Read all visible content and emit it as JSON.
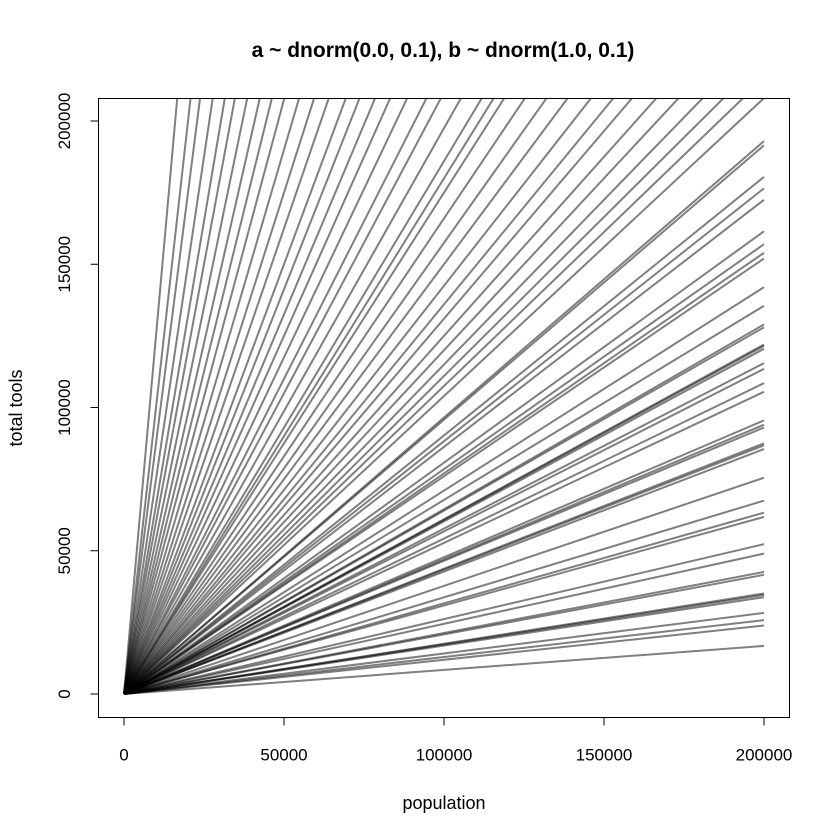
{
  "chart_data": {
    "type": "line",
    "title": "a ~ dnorm(0.0, 0.1), b ~ dnorm(1.0, 0.1)",
    "xlabel": "population",
    "ylabel": "total tools",
    "xlim": [
      0,
      200000
    ],
    "ylim": [
      0,
      200000
    ],
    "x_ticks": [
      0,
      50000,
      100000,
      150000,
      200000
    ],
    "y_ticks": [
      0,
      50000,
      100000,
      150000,
      200000
    ],
    "x_tick_labels": [
      "0",
      "50000",
      "100000",
      "150000",
      "200000"
    ],
    "y_tick_labels": [
      "0",
      "50000",
      "100000",
      "150000",
      "200000"
    ],
    "grid": false,
    "legend": "none",
    "line_color": "#000000",
    "line_opacity": 0.5,
    "x": [
      0,
      200000
    ],
    "series_y_at_200000": [
      16800,
      23900,
      25800,
      28300,
      33800,
      34600,
      35100,
      41600,
      42600,
      49000,
      52300,
      61800,
      63300,
      67500,
      75500,
      85500,
      86800,
      87500,
      93000,
      94000,
      95500,
      105500,
      108500,
      113500,
      115500,
      120500,
      121500,
      122000,
      128000,
      129000,
      135500,
      142000,
      152000,
      154000,
      157000,
      161500,
      172500,
      176500,
      180500,
      191500,
      193000,
      208000,
      215000,
      222000,
      230000,
      240000,
      250000,
      262000,
      272000,
      285000,
      300000,
      315000,
      332000,
      350000,
      360000,
      372000,
      395000,
      420000,
      440000,
      470000,
      500000,
      530000,
      565000,
      600000,
      650000,
      700000,
      760000,
      830000,
      900000,
      980000,
      1080000,
      1200000,
      1320000,
      1500000,
      1750000,
      2000000,
      2500000
    ]
  }
}
